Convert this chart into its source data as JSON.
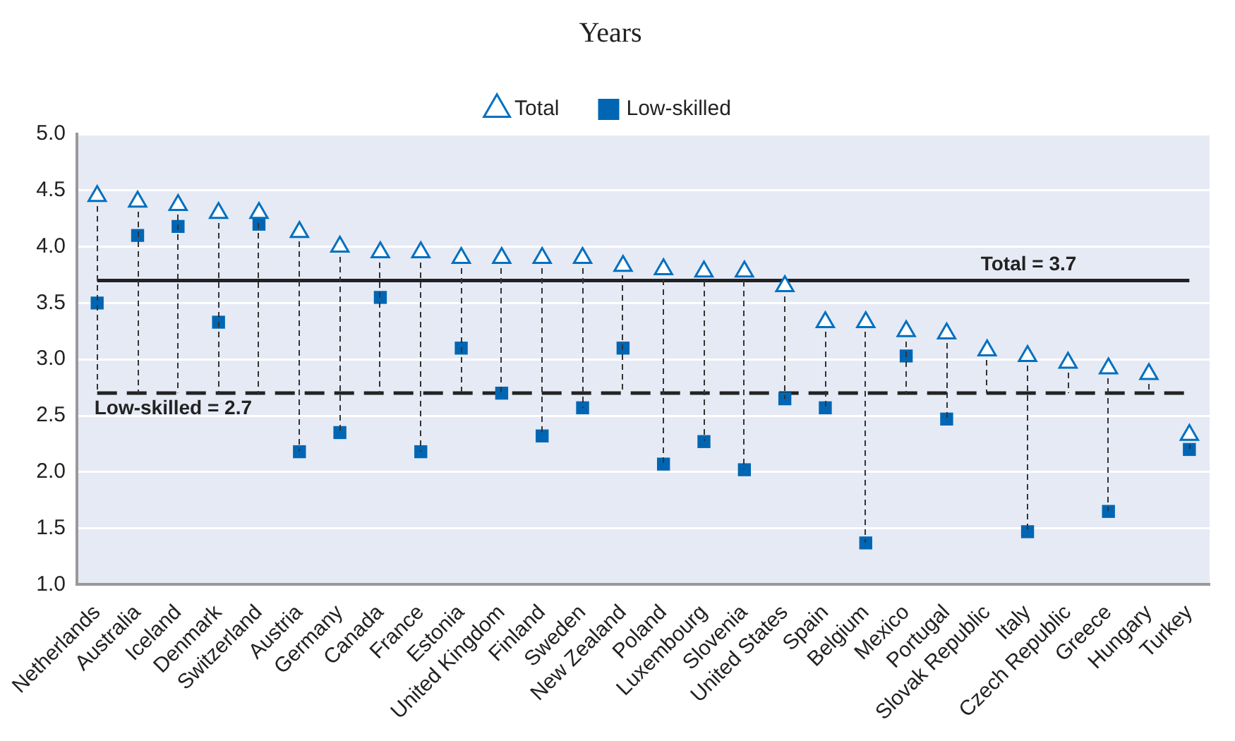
{
  "chart_data": {
    "type": "scatter",
    "title": "Years",
    "categories": [
      "Netherlands",
      "Australia",
      "Iceland",
      "Denmark",
      "Switzerland",
      "Austria",
      "Germany",
      "Canada",
      "France",
      "Estonia",
      "United Kingdom",
      "Finland",
      "Sweden",
      "New Zealand",
      "Poland",
      "Luxembourg",
      "Slovenia",
      "United States",
      "Spain",
      "Belgium",
      "Mexico",
      "Portugal",
      "Slovak Republic",
      "Italy",
      "Czech Republic",
      "Greece",
      "Hungary",
      "Turkey"
    ],
    "series": [
      {
        "name": "Total",
        "color": "#0070c0",
        "marker": "triangle",
        "values": [
          4.45,
          4.4,
          4.37,
          4.3,
          4.3,
          4.13,
          4.0,
          3.95,
          3.95,
          3.9,
          3.9,
          3.9,
          3.9,
          3.83,
          3.8,
          3.78,
          3.78,
          3.65,
          3.33,
          3.33,
          3.25,
          3.23,
          3.08,
          3.03,
          2.97,
          2.92,
          2.87,
          2.33
        ]
      },
      {
        "name": "Low-skilled",
        "color": "#0066b3",
        "marker": "square",
        "values": [
          3.5,
          4.1,
          4.18,
          3.33,
          4.2,
          2.18,
          2.35,
          3.55,
          2.18,
          3.1,
          2.7,
          2.32,
          2.57,
          3.1,
          2.07,
          2.27,
          2.02,
          2.65,
          2.57,
          1.37,
          3.03,
          2.47,
          null,
          1.47,
          null,
          1.65,
          null,
          2.2
        ]
      }
    ],
    "ylim": [
      1.0,
      5.0
    ],
    "yticks": [
      {
        "value": 1.0,
        "label": "1.0"
      },
      {
        "value": 1.5,
        "label": "1.5"
      },
      {
        "value": 2.0,
        "label": "2.0"
      },
      {
        "value": 2.5,
        "label": "2.5"
      },
      {
        "value": 3.0,
        "label": "3.0"
      },
      {
        "value": 3.5,
        "label": "3.5"
      },
      {
        "value": 4.0,
        "label": "4.0"
      },
      {
        "value": 4.5,
        "label": "4.5"
      },
      {
        "value": 5.0,
        "label": "5.0"
      }
    ],
    "grid": "y",
    "legend": "top",
    "ref_lines": [
      {
        "axis": "y",
        "value": 3.7,
        "label": "Total = 3.7",
        "color": "#222222",
        "line_style": "solid"
      },
      {
        "axis": "y",
        "value": 2.7,
        "label": "Low-skilled = 2.7",
        "color": "#222222",
        "line_style": "dashed"
      }
    ]
  }
}
